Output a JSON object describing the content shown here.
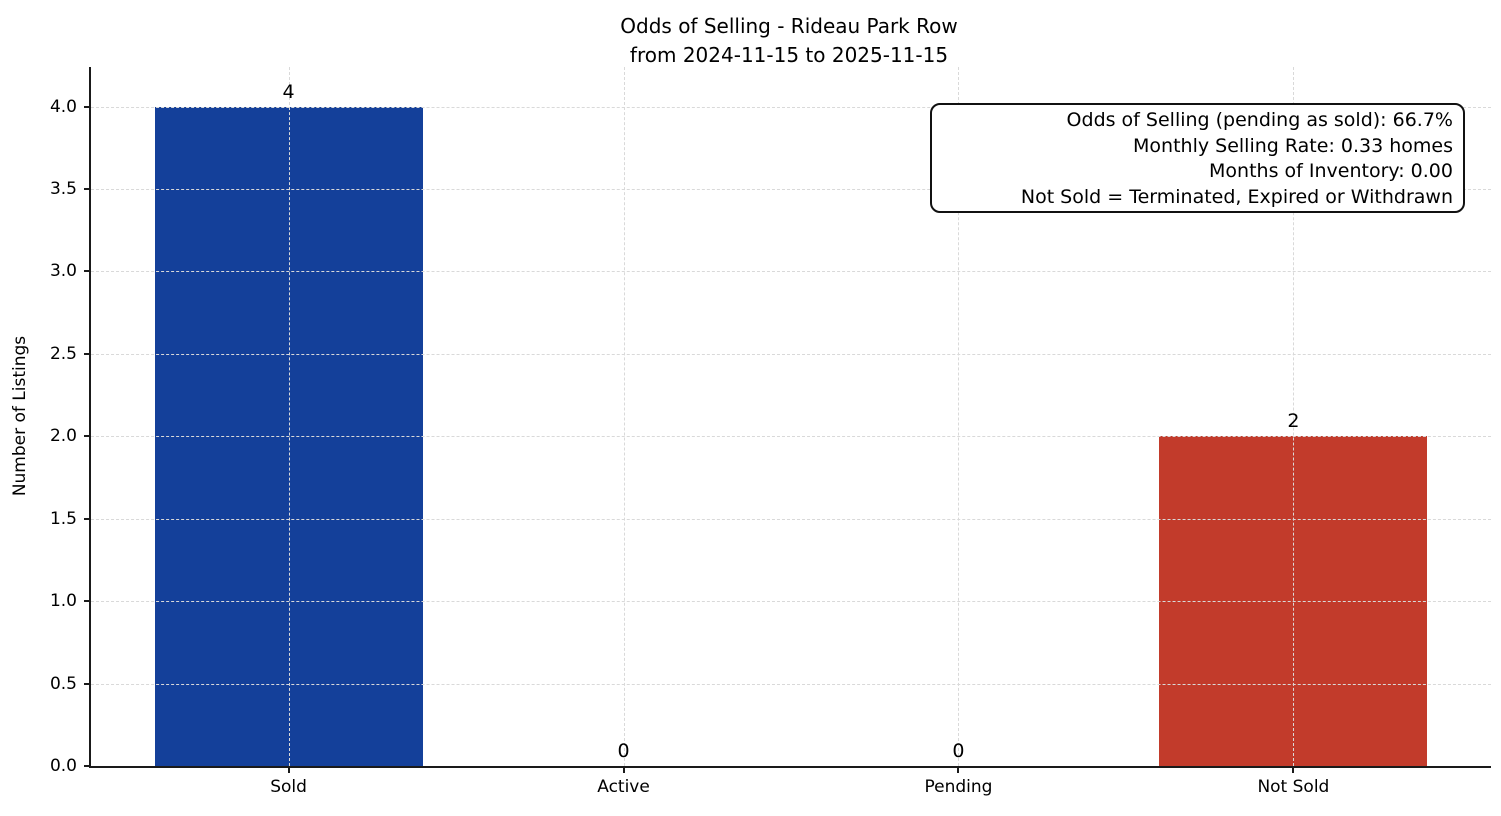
{
  "chart_data": {
    "type": "bar",
    "title": "Odds of Selling - Rideau Park Row",
    "subtitle": "from 2024-11-15 to 2025-11-15",
    "categories": [
      "Sold",
      "Active",
      "Pending",
      "Not Sold"
    ],
    "values": [
      4,
      0,
      0,
      2
    ],
    "bar_value_labels": [
      "4",
      "0",
      "0",
      "2"
    ],
    "bar_colors": [
      "#14409a",
      null,
      null,
      "#c23b2b"
    ],
    "xlabel": "",
    "ylabel": "Number of Listings",
    "ylim": [
      0,
      4.24
    ],
    "yticks": [
      0.0,
      0.5,
      1.0,
      1.5,
      2.0,
      2.5,
      3.0,
      3.5,
      4.0
    ],
    "ytick_labels": [
      "0.0",
      "0.5",
      "1.0",
      "1.5",
      "2.0",
      "2.5",
      "3.0",
      "3.5",
      "4.0"
    ],
    "grid": {
      "horizontal": true,
      "vertical": true,
      "line_style": "dashed",
      "color": "#d9d9d9"
    },
    "legend": null,
    "annotation_box": {
      "text_align": "right",
      "lines": [
        "Odds of Selling (pending as sold): 66.7%",
        "Monthly Selling Rate: 0.33 homes",
        "Months of Inventory: 0.00",
        "Not Sold = Terminated, Expired or Withdrawn"
      ]
    },
    "colors": {
      "sold_bar": "#14409a",
      "not_sold_bar": "#c23b2b",
      "axis": "#1a1a1a",
      "grid": "#d9d9d9",
      "text": "#000000",
      "background": "#ffffff"
    }
  }
}
